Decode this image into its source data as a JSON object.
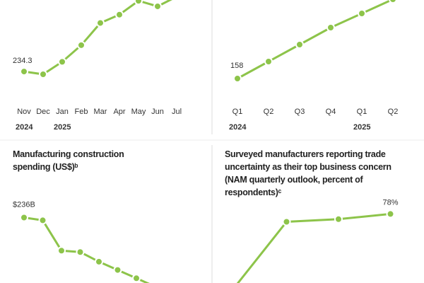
{
  "chart_data": [
    {
      "type": "line",
      "color": "#8dc44a",
      "categories": [
        "Nov",
        "Dec",
        "Jan",
        "Feb",
        "Mar",
        "Apr",
        "May",
        "Jun",
        "Jul"
      ],
      "category_groups": [
        "2024",
        null,
        "2025",
        null,
        null,
        null,
        null,
        null,
        null
      ],
      "values": [
        234.3,
        234.1,
        235.0,
        236.2,
        237.8,
        238.4,
        239.4,
        239.0,
        239.7
      ],
      "value_labels": [
        "234.3",
        null,
        null,
        null,
        null,
        null,
        null,
        null,
        null
      ]
    },
    {
      "type": "line",
      "color": "#8dc44a",
      "categories": [
        "Q1",
        "Q2",
        "Q3",
        "Q4",
        "Q1",
        "Q2"
      ],
      "category_groups": [
        "2024",
        null,
        null,
        null,
        "2025",
        null
      ],
      "values": [
        158,
        164,
        170,
        176,
        181,
        186
      ],
      "value_labels": [
        "158",
        null,
        null,
        null,
        null,
        null
      ]
    },
    {
      "type": "line",
      "color": "#8dc44a",
      "title": "Manufacturing construction spending (US$)ᵇ",
      "values": [
        236,
        235,
        224,
        223.5,
        220,
        217,
        214,
        211
      ],
      "value_labels": [
        "$236B",
        null,
        null,
        null,
        null,
        null,
        null,
        null
      ]
    },
    {
      "type": "line",
      "color": "#8dc44a",
      "title": "Surveyed manufacturers reporting trade uncertainty as their top business concern (NAM quarterly outlook, percent of respondents)ᶜ",
      "values": [
        50,
        75,
        76,
        78
      ],
      "value_labels": [
        null,
        null,
        null,
        "78%"
      ]
    }
  ]
}
